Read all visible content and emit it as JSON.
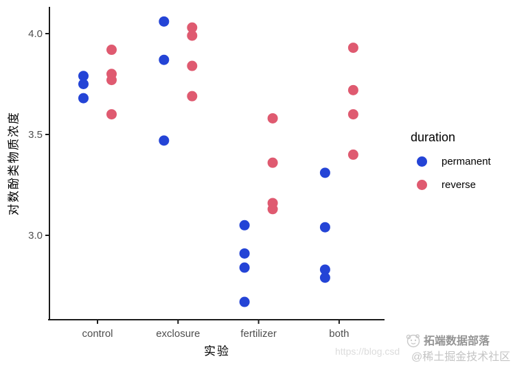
{
  "watermark": {
    "url_text": "https://blog.csd",
    "brand_text": "拓端数据部落",
    "community_text": "@稀土掘金技术社区"
  },
  "chart_data": {
    "type": "scatter",
    "title": "",
    "xlabel": "实验",
    "ylabel": "对数酚类物质浓度",
    "categories": [
      "control",
      "exclosure",
      "fertilizer",
      "both"
    ],
    "yticks": [
      {
        "label": "3.0",
        "value": 3.0
      },
      {
        "label": "3.5",
        "value": 3.5
      },
      {
        "label": "4.0",
        "value": 4.0
      }
    ],
    "ylim": [
      2.58,
      4.13
    ],
    "grid": false,
    "background": "#ffffff",
    "axis_color": "#1a1a1a",
    "tick_text_color": "#4d4d4d",
    "legend": {
      "title": "duration",
      "position": "right"
    },
    "series": [
      {
        "name": "permanent",
        "color": "#2444d6",
        "points": [
          {
            "category": "control",
            "value": 3.79
          },
          {
            "category": "control",
            "value": 3.75
          },
          {
            "category": "control",
            "value": 3.68
          },
          {
            "category": "exclosure",
            "value": 4.06
          },
          {
            "category": "exclosure",
            "value": 3.87
          },
          {
            "category": "exclosure",
            "value": 3.47
          },
          {
            "category": "fertilizer",
            "value": 3.05
          },
          {
            "category": "fertilizer",
            "value": 2.91
          },
          {
            "category": "fertilizer",
            "value": 2.84
          },
          {
            "category": "fertilizer",
            "value": 2.67
          },
          {
            "category": "both",
            "value": 3.31
          },
          {
            "category": "both",
            "value": 3.04
          },
          {
            "category": "both",
            "value": 2.83
          },
          {
            "category": "both",
            "value": 2.79
          }
        ]
      },
      {
        "name": "reverse",
        "color": "#df5a70",
        "points": [
          {
            "category": "control",
            "value": 3.92
          },
          {
            "category": "control",
            "value": 3.8
          },
          {
            "category": "control",
            "value": 3.77
          },
          {
            "category": "control",
            "value": 3.6
          },
          {
            "category": "exclosure",
            "value": 4.03
          },
          {
            "category": "exclosure",
            "value": 3.99
          },
          {
            "category": "exclosure",
            "value": 3.84
          },
          {
            "category": "exclosure",
            "value": 3.69
          },
          {
            "category": "fertilizer",
            "value": 3.58
          },
          {
            "category": "fertilizer",
            "value": 3.36
          },
          {
            "category": "fertilizer",
            "value": 3.16
          },
          {
            "category": "fertilizer",
            "value": 3.13
          },
          {
            "category": "both",
            "value": 3.93
          },
          {
            "category": "both",
            "value": 3.72
          },
          {
            "category": "both",
            "value": 3.6
          },
          {
            "category": "both",
            "value": 3.4
          }
        ]
      }
    ]
  }
}
